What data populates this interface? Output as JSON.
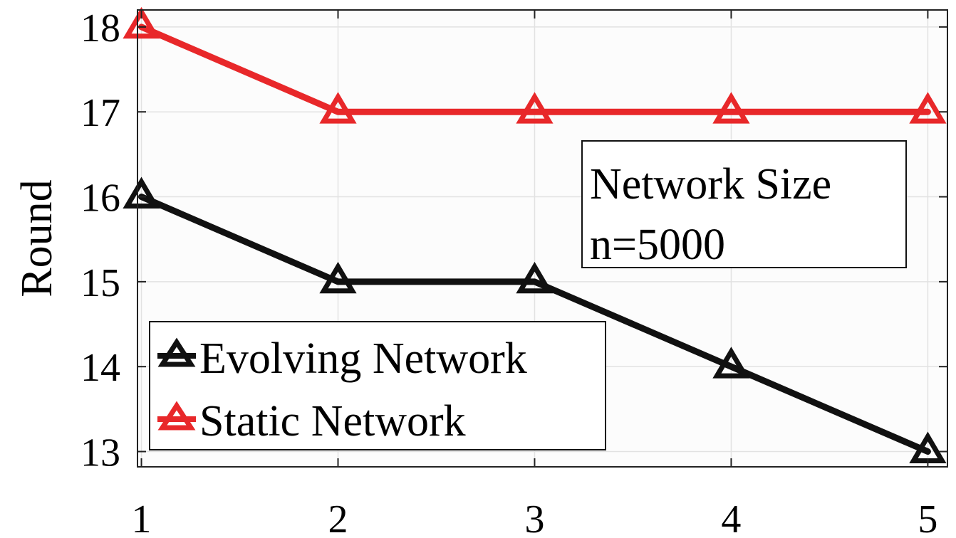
{
  "chart_data": {
    "type": "line",
    "x": [
      1,
      2,
      3,
      4,
      5
    ],
    "xticks": [
      "1",
      "2",
      "3",
      "4",
      "5"
    ],
    "yticks": [
      "13",
      "14",
      "15",
      "16",
      "17",
      "18"
    ],
    "xlim": [
      0.98,
      5.1
    ],
    "ylim": [
      12.82,
      18.2
    ],
    "xlabel": "",
    "ylabel": "Round",
    "grid": true,
    "legend_position": "bottom-left",
    "series": [
      {
        "name": "Evolving Network",
        "color": "#111111",
        "marker": "triangle",
        "values": [
          16,
          15,
          15,
          14,
          13
        ]
      },
      {
        "name": "Static Network",
        "color": "#e8282a",
        "marker": "triangle",
        "values": [
          18,
          17,
          17,
          17,
          17
        ]
      }
    ],
    "annotation": {
      "line1": "Network Size",
      "line2": "n=5000"
    }
  }
}
